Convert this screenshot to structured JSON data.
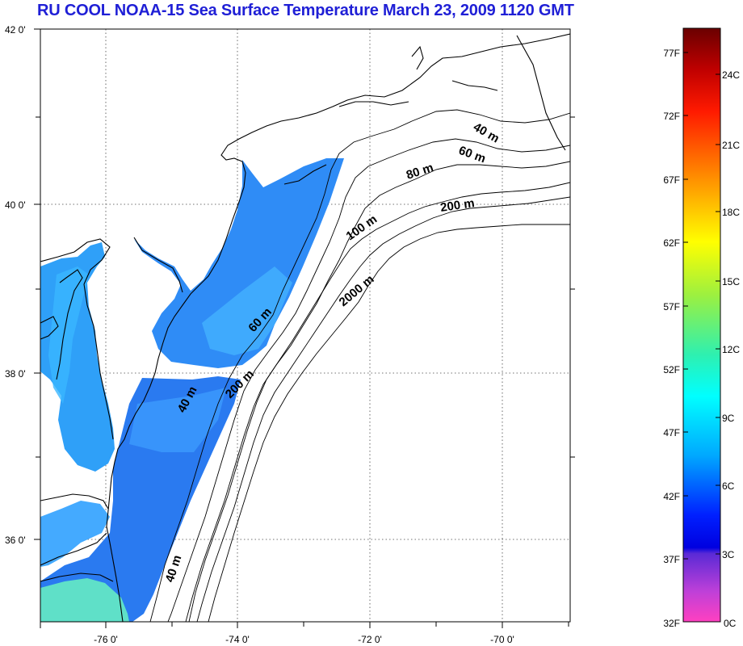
{
  "title": "RU COOL  NOAA-15 Sea Surface Temperature March 23, 2009 1120 GMT",
  "map": {
    "x_ticks": [
      {
        "lon": -76,
        "label": "-76 0'"
      },
      {
        "lon": -74,
        "label": "-74 0'"
      },
      {
        "lon": -72,
        "label": "-72 0'"
      },
      {
        "lon": -70,
        "label": "-70 0'"
      }
    ],
    "y_ticks": [
      {
        "lat": 42,
        "label": "42 0'"
      },
      {
        "lat": 40,
        "label": "40 0'"
      },
      {
        "lat": 38,
        "label": "38 0'"
      },
      {
        "lat": 36,
        "label": "36 0'"
      }
    ],
    "contour_labels": [
      {
        "text": "40 m"
      },
      {
        "text": "60 m"
      },
      {
        "text": "80 m"
      },
      {
        "text": "200 m"
      },
      {
        "text": "100 m"
      },
      {
        "text": "2000 m"
      },
      {
        "text": "60 m"
      },
      {
        "text": "200 m"
      },
      {
        "text": "40 m"
      },
      {
        "text": "40 m"
      }
    ]
  },
  "colorbar": {
    "fahrenheit_labels": [
      "77F",
      "72F",
      "67F",
      "62F",
      "57F",
      "52F",
      "47F",
      "42F",
      "37F",
      "32F"
    ],
    "celsius_labels": [
      "24C",
      "21C",
      "18C",
      "15C",
      "12C",
      "9C",
      "6C",
      "3C",
      "0C"
    ],
    "colors": {
      "top": "#7a0000",
      "red": "#ff1a00",
      "orange": "#ff8c00",
      "yellow": "#ffff00",
      "green": "#3cf060",
      "cyan": "#00ffff",
      "light-blue": "#00a8ff",
      "blue": "#0000ff",
      "purple": "#7b2fd0",
      "magenta": "#ff40c0"
    }
  },
  "colors": {
    "title": "#1f1fd6",
    "sst_dominant": "#1e90ff",
    "sst_light": "#3fb0ff"
  }
}
